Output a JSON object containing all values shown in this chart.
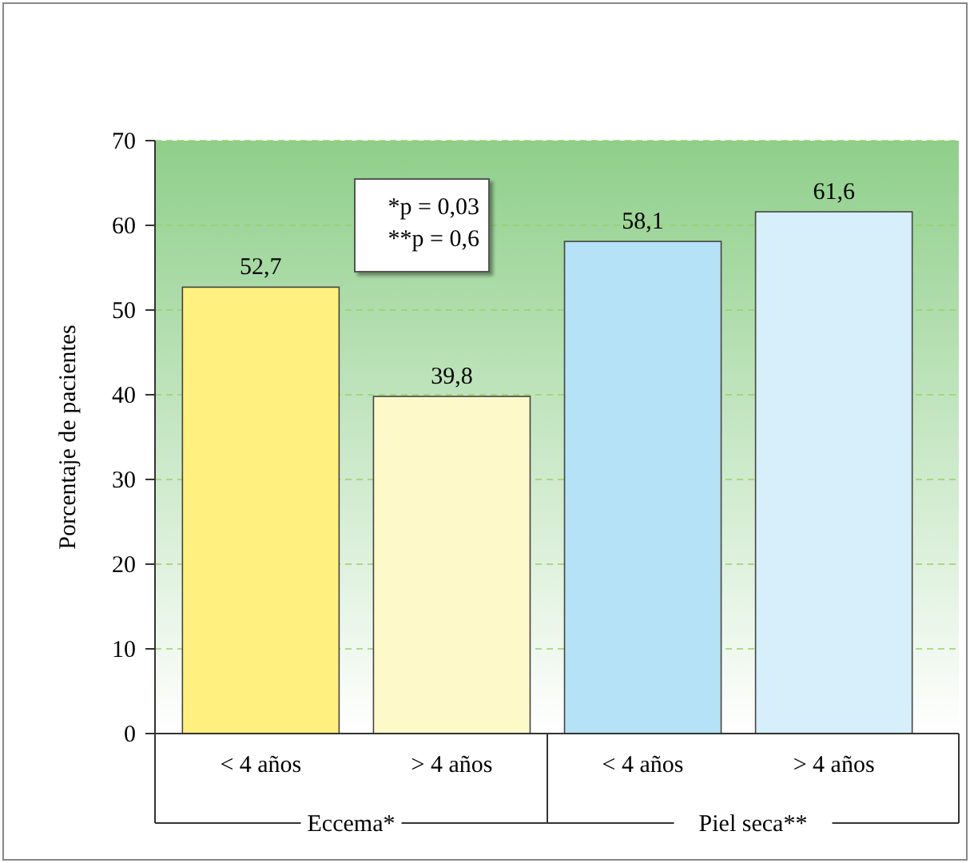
{
  "chart_data": {
    "type": "bar",
    "ylabel": "Porcentaje de pacientes",
    "categories": [
      "< 4 años",
      "> 4 años",
      "< 4 años",
      "> 4 años"
    ],
    "values": [
      52.7,
      39.8,
      58.1,
      61.6
    ],
    "colors": [
      "#fff080",
      "#fef9c8",
      "#b5e2f6",
      "#d6effa"
    ],
    "ylim": [
      0,
      70
    ],
    "yticks": [
      0,
      10,
      20,
      30,
      40,
      50,
      60,
      70
    ],
    "grid": "y",
    "value_labels": [
      "52,7",
      "39,8",
      "58,1",
      "61,6"
    ],
    "annotations": [
      "Eccema*",
      "Piel seca**",
      "*p = 0,03",
      "**p = 0,6"
    ]
  }
}
